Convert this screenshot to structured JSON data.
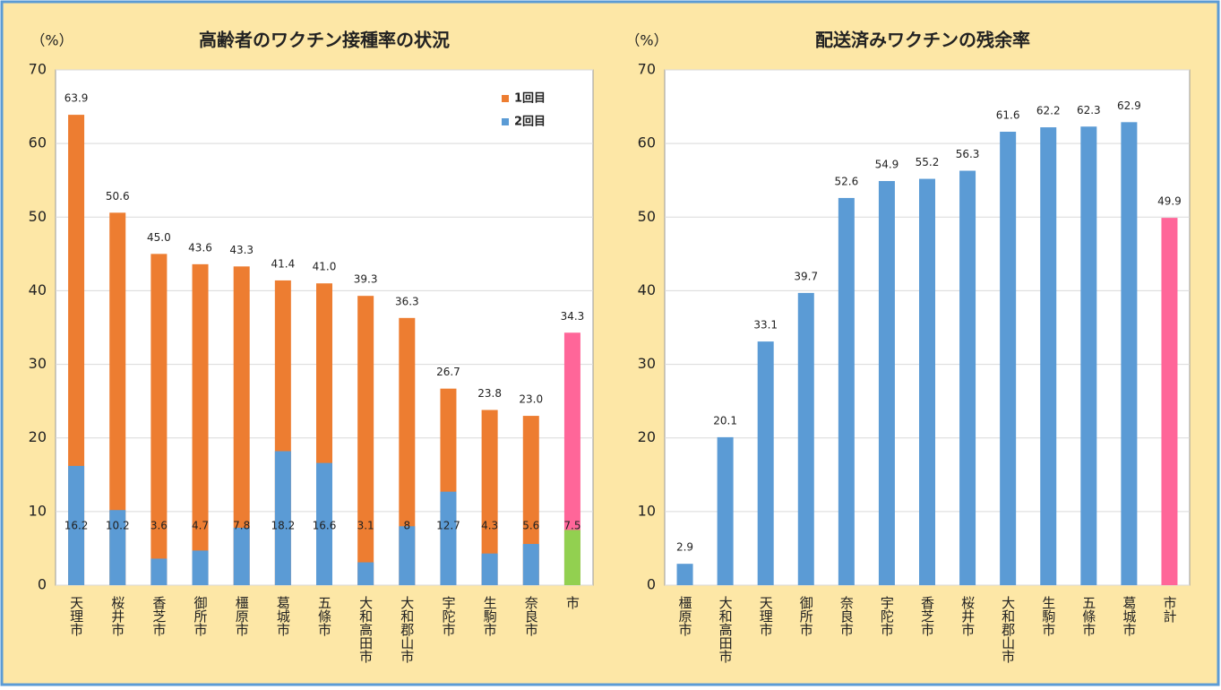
{
  "chart_data": [
    {
      "type": "bar",
      "barmode": "overlay",
      "title": "高齢者のワクチン接種率の状況",
      "unit_label": "（%）",
      "categories": [
        "天理市",
        "桜井市",
        "香芝市",
        "御所市",
        "橿原市",
        "葛城市",
        "五條市",
        "大和高田市",
        "大和郡山市",
        "宇陀市",
        "生駒市",
        "奈良市",
        "市"
      ],
      "series": [
        {
          "name": "1回目",
          "color": "#ed7d31",
          "colors": [
            "#ed7d31",
            "#ed7d31",
            "#ed7d31",
            "#ed7d31",
            "#ed7d31",
            "#ed7d31",
            "#ed7d31",
            "#ed7d31",
            "#ed7d31",
            "#ed7d31",
            "#ed7d31",
            "#ed7d31",
            "#ff6699"
          ],
          "values": [
            63.9,
            50.6,
            45.0,
            43.6,
            43.3,
            41.4,
            41.0,
            39.3,
            36.3,
            26.7,
            23.8,
            23.0,
            34.3
          ],
          "value_labels": [
            "63.9",
            "50.6",
            "45.0",
            "43.6",
            "43.3",
            "41.4",
            "41.0",
            "39.3",
            "36.3",
            "26.7",
            "23.8",
            "23.0",
            "34.3"
          ]
        },
        {
          "name": "2回目",
          "color": "#5b9bd5",
          "colors": [
            "#5b9bd5",
            "#5b9bd5",
            "#5b9bd5",
            "#5b9bd5",
            "#5b9bd5",
            "#5b9bd5",
            "#5b9bd5",
            "#5b9bd5",
            "#5b9bd5",
            "#5b9bd5",
            "#5b9bd5",
            "#5b9bd5",
            "#92d050"
          ],
          "values": [
            16.2,
            10.2,
            3.6,
            4.7,
            7.8,
            18.2,
            16.6,
            3.1,
            8.0,
            12.7,
            4.3,
            5.6,
            7.5
          ]
        }
      ],
      "ylim": [
        0,
        70
      ],
      "yticks": [
        0,
        10,
        20,
        30,
        40,
        50,
        60,
        70
      ],
      "grid": true,
      "legend": "upper right"
    },
    {
      "type": "bar",
      "title": "配送済みワクチンの残余率",
      "unit_label": "（%）",
      "categories": [
        "橿原市",
        "大和高田市",
        "天理市",
        "御所市",
        "奈良市",
        "宇陀市",
        "香芝市",
        "桜井市",
        "大和郡山市",
        "生駒市",
        "五條市",
        "葛城市",
        "市計"
      ],
      "series": [
        {
          "color": "#5b9bd5",
          "colors": [
            "#5b9bd5",
            "#5b9bd5",
            "#5b9bd5",
            "#5b9bd5",
            "#5b9bd5",
            "#5b9bd5",
            "#5b9bd5",
            "#5b9bd5",
            "#5b9bd5",
            "#5b9bd5",
            "#5b9bd5",
            "#5b9bd5",
            "#ff6699"
          ],
          "values": [
            2.9,
            20.1,
            33.1,
            39.7,
            52.6,
            54.9,
            55.2,
            56.3,
            61.6,
            62.2,
            62.3,
            62.9,
            49.9
          ]
        }
      ],
      "ylim": [
        0,
        70
      ],
      "yticks": [
        0,
        10,
        20,
        30,
        40,
        50,
        60,
        70
      ],
      "grid": true
    }
  ]
}
